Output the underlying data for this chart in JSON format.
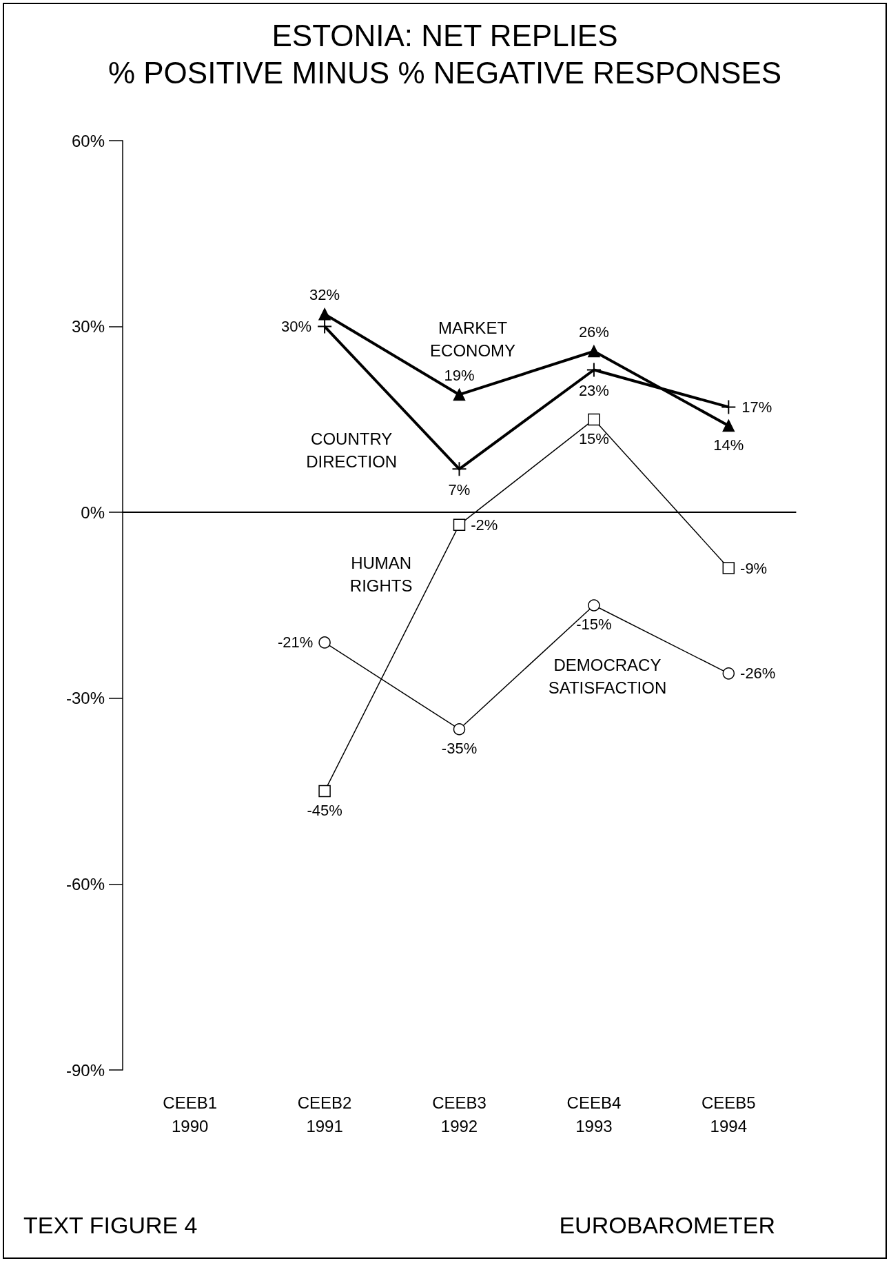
{
  "chart_data": {
    "type": "line",
    "title": "ESTONIA: NET REPLIES",
    "subtitle": "% POSITIVE MINUS % NEGATIVE RESPONSES",
    "categories": [
      "CEEB1\n1990",
      "CEEB2\n1991",
      "CEEB3\n1992",
      "CEEB4\n1993",
      "CEEB5\n1994"
    ],
    "series": [
      {
        "name": "MARKET ECONOMY",
        "color": "#000000",
        "marker": "triangle",
        "values": [
          null,
          32,
          19,
          26,
          14
        ],
        "value_labels": [
          null,
          "32%",
          "19%",
          "26%",
          "14%"
        ]
      },
      {
        "name": "COUNTRY DIRECTION",
        "color": "#000000",
        "marker": "cross",
        "values": [
          null,
          30,
          7,
          23,
          17
        ],
        "value_labels": [
          null,
          "30%",
          "7%",
          "23%",
          "17%"
        ]
      },
      {
        "name": "HUMAN RIGHTS",
        "color": "#000000",
        "marker": "square",
        "values": [
          null,
          -45,
          -2,
          15,
          -9
        ],
        "value_labels": [
          null,
          "-45%",
          "-2%",
          "15%",
          "-9%"
        ]
      },
      {
        "name": "DEMOCRACY SATISFACTION",
        "color": "#000000",
        "marker": "circle",
        "values": [
          null,
          -21,
          -35,
          -15,
          -26
        ],
        "value_labels": [
          null,
          "-21%",
          "-35%",
          "-15%",
          "-26%"
        ]
      }
    ],
    "ylim": [
      -90,
      60
    ],
    "yticks": [
      {
        "value": -90,
        "label": "-90%"
      },
      {
        "value": -60,
        "label": "-60%"
      },
      {
        "value": -30,
        "label": "-30%"
      },
      {
        "value": 0,
        "label": "0%"
      },
      {
        "value": 30,
        "label": "30%"
      },
      {
        "value": 60,
        "label": "60%"
      }
    ],
    "ref_lines": [
      {
        "axis": "y",
        "value": 0,
        "color": "#000000"
      }
    ],
    "grid": false,
    "legend": false,
    "annotations": [
      "TEXT FIGURE 4",
      "EUROBAROMETER"
    ]
  }
}
